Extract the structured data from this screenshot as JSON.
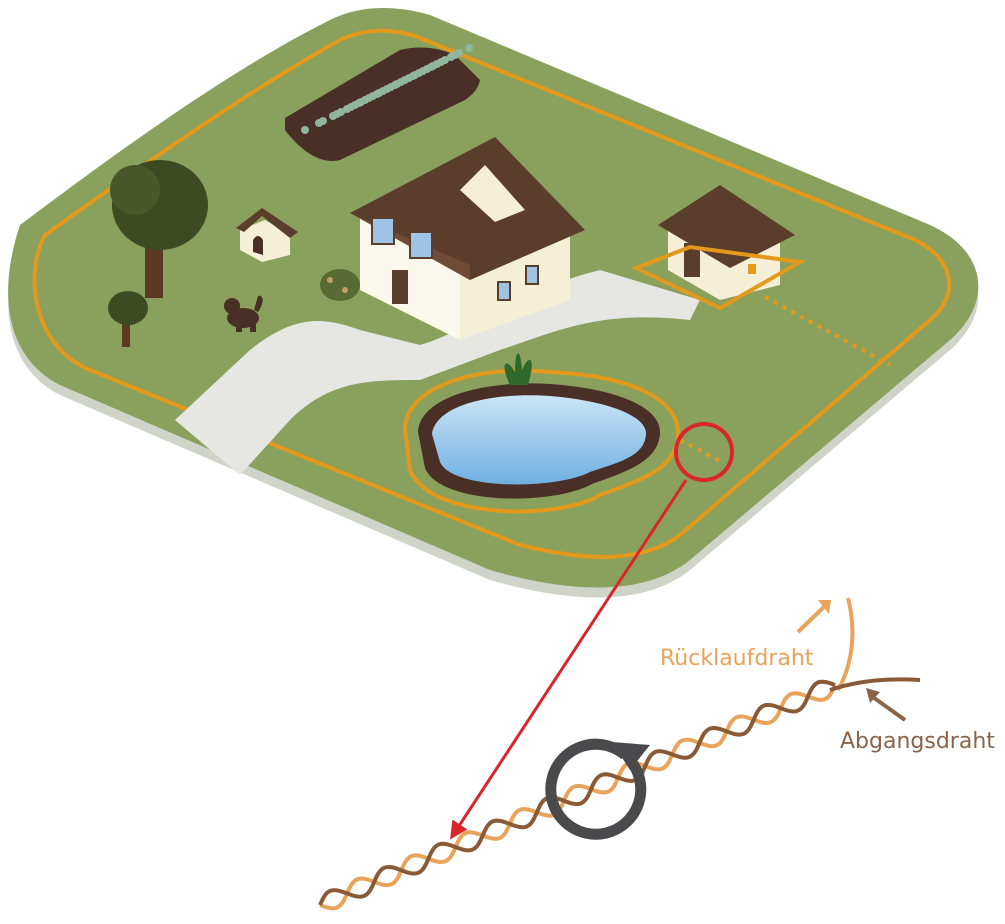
{
  "labels": {
    "return_wire": "Rücklaufdraht",
    "outgoing_wire": "Abgangsdraht"
  },
  "colors": {
    "lawn": "#8aa05d",
    "lawn_edge": "#cfd3c8",
    "boundary_wire": "#e39a1c",
    "path": "#e6e6e3",
    "veg_bed": "#4a2f26",
    "veg_dots": "#8fb7a0",
    "tree_canopy": "#3e4a22",
    "tree_trunk": "#5a3a22",
    "house_wall": "#f5efd8",
    "roof": "#5b3d2b",
    "window": "#9fc3e4",
    "pond_water": "#8ec3eb",
    "pond_rim": "#4a2f26",
    "magnifier": "#d8262c",
    "return_wire_label": "#e9a35a",
    "outgoing_wire_label": "#8a6448",
    "outgoing_wire": "#8a5a36",
    "rotation_arrow": "#4a4a4c"
  },
  "icons": {
    "rotation": "rotation-arrow-icon",
    "zoom": "magnifier-circle-icon"
  }
}
